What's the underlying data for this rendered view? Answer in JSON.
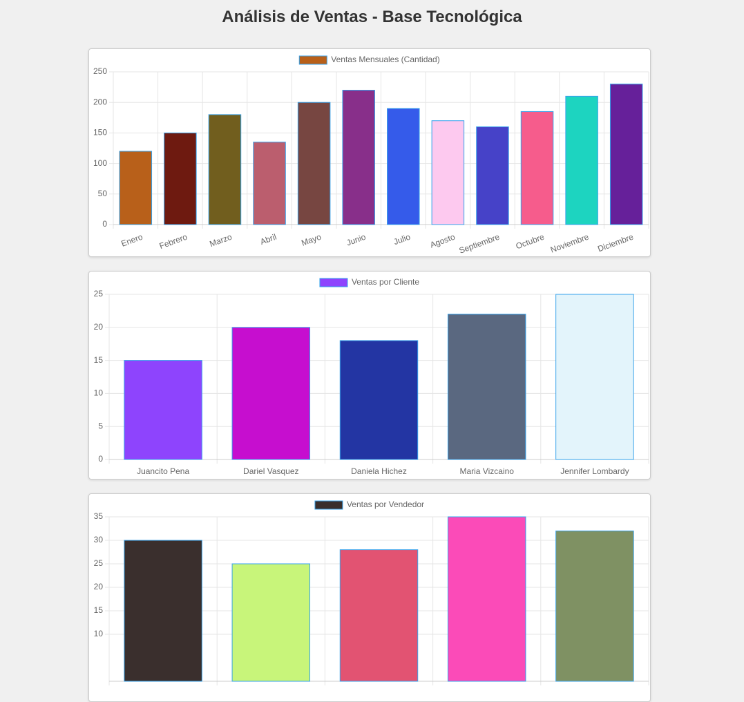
{
  "header": {
    "title": "Análisis de Ventas - Base Tecnológica"
  },
  "chart_data": [
    {
      "type": "bar",
      "categories": [
        "Enero",
        "Febrero",
        "Marzo",
        "Abril",
        "Mayo",
        "Junio",
        "Julio",
        "Agosto",
        "Septiembre",
        "Octubre",
        "Noviembre",
        "Diciembre"
      ],
      "series": [
        {
          "name": "Ventas Mensuales (Cantidad)",
          "colors": [
            "#b8601a",
            "#6e1a10",
            "#715e1e",
            "#bb5e6e",
            "#774641",
            "#882f8a",
            "#355bea",
            "#fdc9ef",
            "#4642c8",
            "#f65c8c",
            "#1dd4c0",
            "#66209a"
          ],
          "values": [
            120,
            150,
            180,
            135,
            200,
            220,
            190,
            170,
            160,
            185,
            210,
            230
          ]
        }
      ],
      "ylim": [
        0,
        250
      ],
      "yticks": [
        0,
        50,
        100,
        150,
        200,
        250
      ],
      "grid": true
    },
    {
      "type": "bar",
      "categories": [
        "Juancito Pena",
        "Dariel Vasquez",
        "Daniela Hichez",
        "Maria Vizcaino",
        "Jennifer Lombardy"
      ],
      "series": [
        {
          "name": "Ventas por Cliente",
          "colors": [
            "#8e44fd",
            "#c60ecf",
            "#2335a3",
            "#5a6880",
            "#e3f4fb"
          ],
          "values": [
            15,
            20,
            18,
            22,
            25
          ]
        }
      ],
      "ylim": [
        0,
        25
      ],
      "yticks": [
        0,
        5,
        10,
        15,
        20,
        25
      ],
      "grid": true
    },
    {
      "type": "bar",
      "categories": [
        null,
        null,
        null,
        null,
        null
      ],
      "series": [
        {
          "name": "Ventas por Vendedor",
          "colors": [
            "#3a2f2d",
            "#c8f57a",
            "#e25372",
            "#fb4bb8",
            "#7f9163"
          ],
          "values": [
            30,
            25,
            28,
            35,
            32
          ]
        }
      ],
      "ylim": [
        0,
        35
      ],
      "yticks": [
        10,
        15,
        20,
        25,
        30,
        35
      ],
      "grid": true
    }
  ]
}
